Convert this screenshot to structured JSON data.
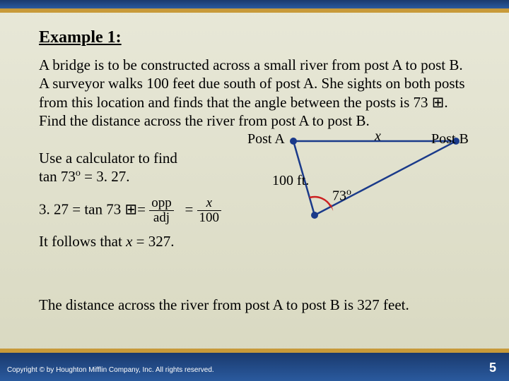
{
  "title": "Example 1:",
  "problem": "A bridge is to be constructed across a small river from post A to post B. A surveyor walks 100 feet due south of post A. She sights on both posts from this location and finds that the angle between the posts is 73 ⊞. Find the distance across the river from post A to post B.",
  "calc": {
    "line1": "Use a calculator to find",
    "line2_pre": "tan 73",
    "line2_post": "= 3. 27.",
    "line3_pre": "3. 27 = tan 73 ⊞=",
    "frac1_num": "opp",
    "frac1_den": "adj",
    "eq": "=",
    "frac2_num": "x",
    "frac2_den": "100",
    "line4_pre": "It follows that ",
    "line4_x": "x",
    "line4_post": " = 327."
  },
  "figure": {
    "postA": "Post A",
    "postB": "Post B",
    "x_label": "x",
    "side": "100 ft.",
    "angle": "73",
    "deg": "o",
    "vertices": {
      "A": [
        60,
        10
      ],
      "B": [
        290,
        10
      ],
      "C": [
        90,
        115
      ]
    },
    "line_color": "#1a3a8a",
    "dot_color": "#1a3a8a",
    "arc_color": "#cc2020"
  },
  "conclusion": "The distance across the river from post A to post B is 327 feet.",
  "footer": {
    "copyright": "Copyright © by Houghton Mifflin Company, Inc. All rights reserved.",
    "page": "5"
  },
  "deg_sym": "o",
  "box_sym": "⊞"
}
